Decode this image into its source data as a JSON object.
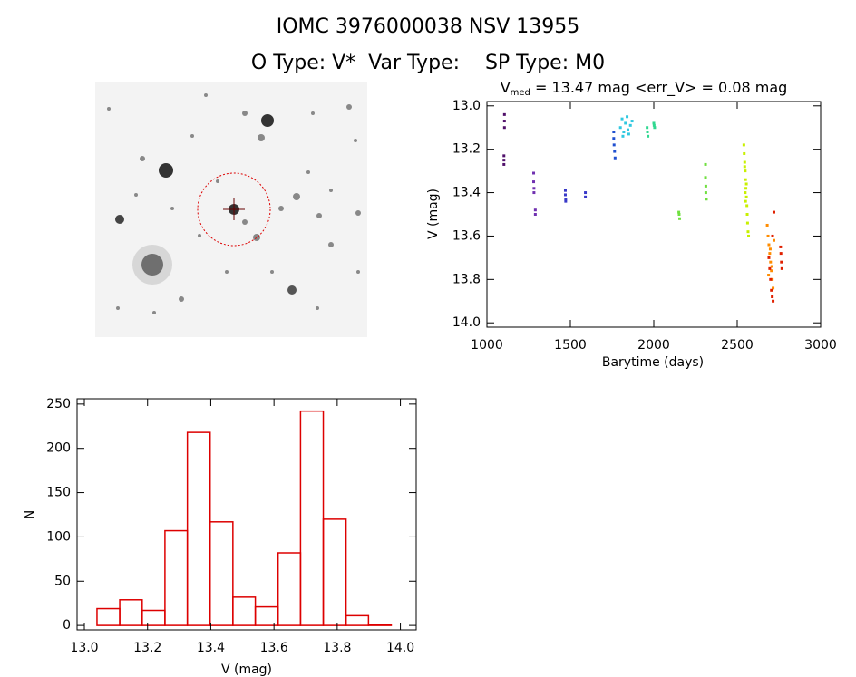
{
  "header": {
    "title": "IOMC 3976000038    NSV 13955",
    "subtitle": "O Type: V*  Var Type:    SP Type: M0"
  },
  "chart_data": [
    {
      "type": "scatter",
      "title_main": "V",
      "title_sub": "med",
      "title_rest": " = 13.47 mag <err_V> = 0.08 mag",
      "x_label": "Barytime (days)",
      "y_label": "V (mag)",
      "xlim": [
        1000,
        3000
      ],
      "xticks": [
        1000,
        1500,
        2000,
        2500,
        3000
      ],
      "ylim": [
        12.98,
        14.02
      ],
      "y_inverted": true,
      "yticks": [
        {
          "value": 13.0,
          "label": "13.0"
        },
        13.2,
        13.4,
        13.6,
        13.8,
        {
          "value": 14.0,
          "label": "14.0"
        }
      ],
      "series": [
        {
          "color": "#50106a",
          "x": [
            1105,
            1105,
            1105,
            1102,
            1102,
            1102
          ],
          "values": [
            13.04,
            13.07,
            13.1,
            13.23,
            13.25,
            13.27
          ]
        },
        {
          "color": "#7030b0",
          "x": [
            1280,
            1280,
            1282,
            1282,
            1290,
            1290
          ],
          "values": [
            13.31,
            13.35,
            13.38,
            13.4,
            13.48,
            13.5
          ]
        },
        {
          "color": "#3838c8",
          "x": [
            1470,
            1470,
            1472,
            1472,
            1590,
            1590
          ],
          "values": [
            13.39,
            13.41,
            13.43,
            13.44,
            13.4,
            13.42
          ]
        },
        {
          "color": "#2050d0",
          "x": [
            1760,
            1760,
            1762,
            1765,
            1768
          ],
          "values": [
            13.12,
            13.15,
            13.18,
            13.21,
            13.24
          ]
        },
        {
          "color": "#30c8e0",
          "x": [
            1800,
            1810,
            1820,
            1830,
            1840,
            1850,
            1860,
            1870,
            1815,
            1845
          ],
          "values": [
            13.1,
            13.06,
            13.12,
            13.08,
            13.05,
            13.13,
            13.09,
            13.07,
            13.14,
            13.11
          ]
        },
        {
          "color": "#30d890",
          "x": [
            1960,
            1962,
            1965,
            2000,
            2002,
            2005
          ],
          "values": [
            13.1,
            13.12,
            13.14,
            13.08,
            13.09,
            13.1
          ]
        },
        {
          "color": "#70e040",
          "x": [
            2150,
            2152,
            2155,
            2310,
            2310,
            2312,
            2312,
            2315
          ],
          "values": [
            13.49,
            13.5,
            13.52,
            13.27,
            13.33,
            13.37,
            13.4,
            13.43
          ]
        },
        {
          "color": "#c8f000",
          "x": [
            2540,
            2542,
            2545,
            2548,
            2550,
            2552,
            2555,
            2558,
            2560,
            2562,
            2565,
            2568,
            2545,
            2555,
            2550,
            2548
          ],
          "values": [
            13.18,
            13.22,
            13.26,
            13.3,
            13.34,
            13.38,
            13.42,
            13.46,
            13.5,
            13.54,
            13.58,
            13.6,
            13.28,
            13.36,
            13.44,
            13.4
          ]
        },
        {
          "color": "#ff8c00",
          "x": [
            2680,
            2685,
            2690,
            2695,
            2700,
            2705,
            2710,
            2715,
            2720,
            2688,
            2698,
            2708
          ],
          "values": [
            13.55,
            13.6,
            13.64,
            13.68,
            13.72,
            13.76,
            13.8,
            13.84,
            13.62,
            13.78,
            13.66,
            13.74
          ]
        },
        {
          "color": "#e02000",
          "x": [
            2690,
            2695,
            2700,
            2705,
            2710,
            2715,
            2720,
            2712,
            2760,
            2762,
            2765,
            2768
          ],
          "values": [
            13.7,
            13.75,
            13.8,
            13.85,
            13.88,
            13.9,
            13.49,
            13.6,
            13.65,
            13.68,
            13.72,
            13.75
          ]
        }
      ]
    },
    {
      "type": "histogram",
      "x_label": "V (mag)",
      "y_label": "N",
      "color": "#dd0000",
      "bins": [
        13.04,
        13.112,
        13.183,
        13.255,
        13.326,
        13.398,
        13.47,
        13.541,
        13.613,
        13.684,
        13.756,
        13.828,
        13.899,
        13.971
      ],
      "values": [
        19,
        29,
        17,
        107,
        218,
        117,
        32,
        21,
        82,
        242,
        120,
        11,
        1
      ],
      "xlim": [
        12.977,
        14.05
      ],
      "xticks": [
        {
          "value": 13.0,
          "label": "13.0"
        },
        13.2,
        13.4,
        13.6,
        13.8,
        {
          "value": 14.0,
          "label": "14.0"
        }
      ],
      "ylim": [
        -5,
        256
      ],
      "yticks": [
        0,
        50,
        100,
        150,
        200,
        250
      ]
    }
  ]
}
